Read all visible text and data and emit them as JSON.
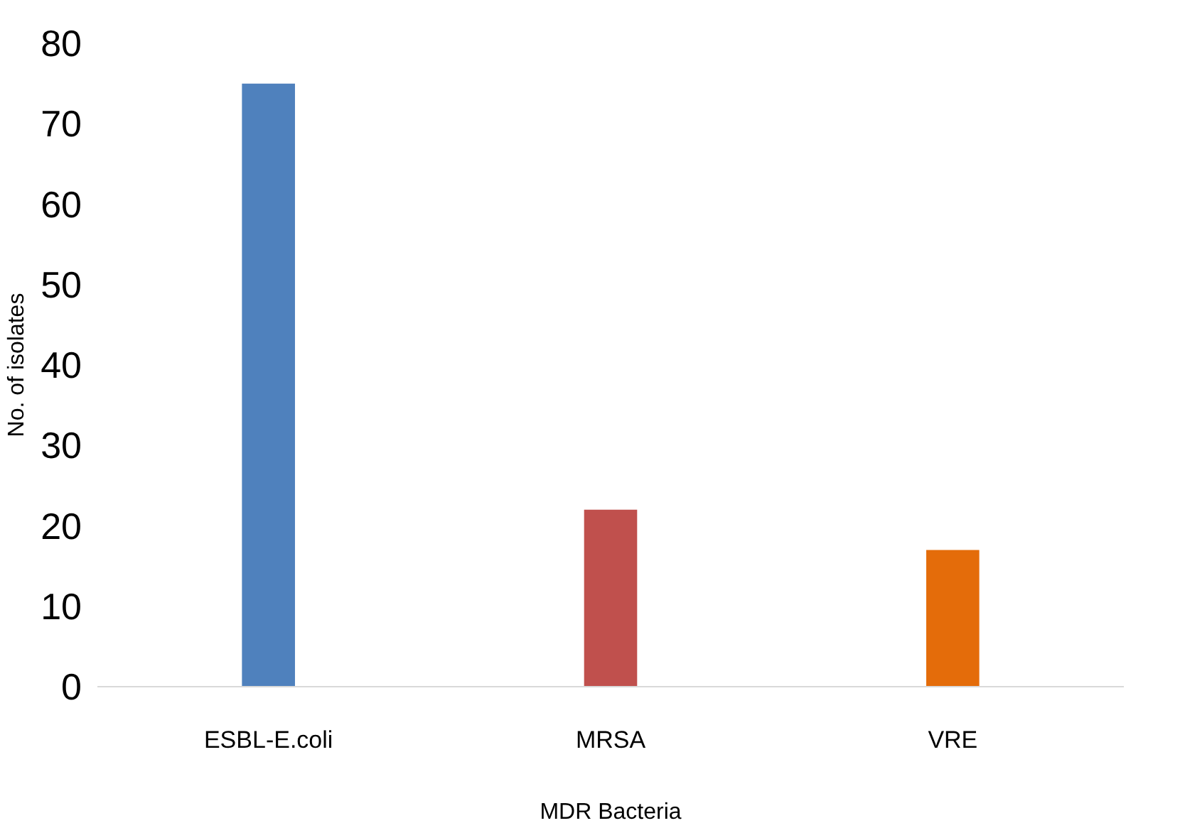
{
  "chart_data": {
    "type": "bar",
    "xlabel": "MDR Bacteria",
    "ylabel": "No. of isolates",
    "categories": [
      "ESBL-E.coli",
      "MRSA",
      "VRE"
    ],
    "values": [
      75,
      22,
      17
    ],
    "colors": [
      "#4f81bd",
      "#c0504d",
      "#e46c0a"
    ],
    "ylim": [
      0,
      80
    ],
    "yticks": [
      0,
      10,
      20,
      30,
      40,
      50,
      60,
      70,
      80
    ],
    "grid": false
  }
}
